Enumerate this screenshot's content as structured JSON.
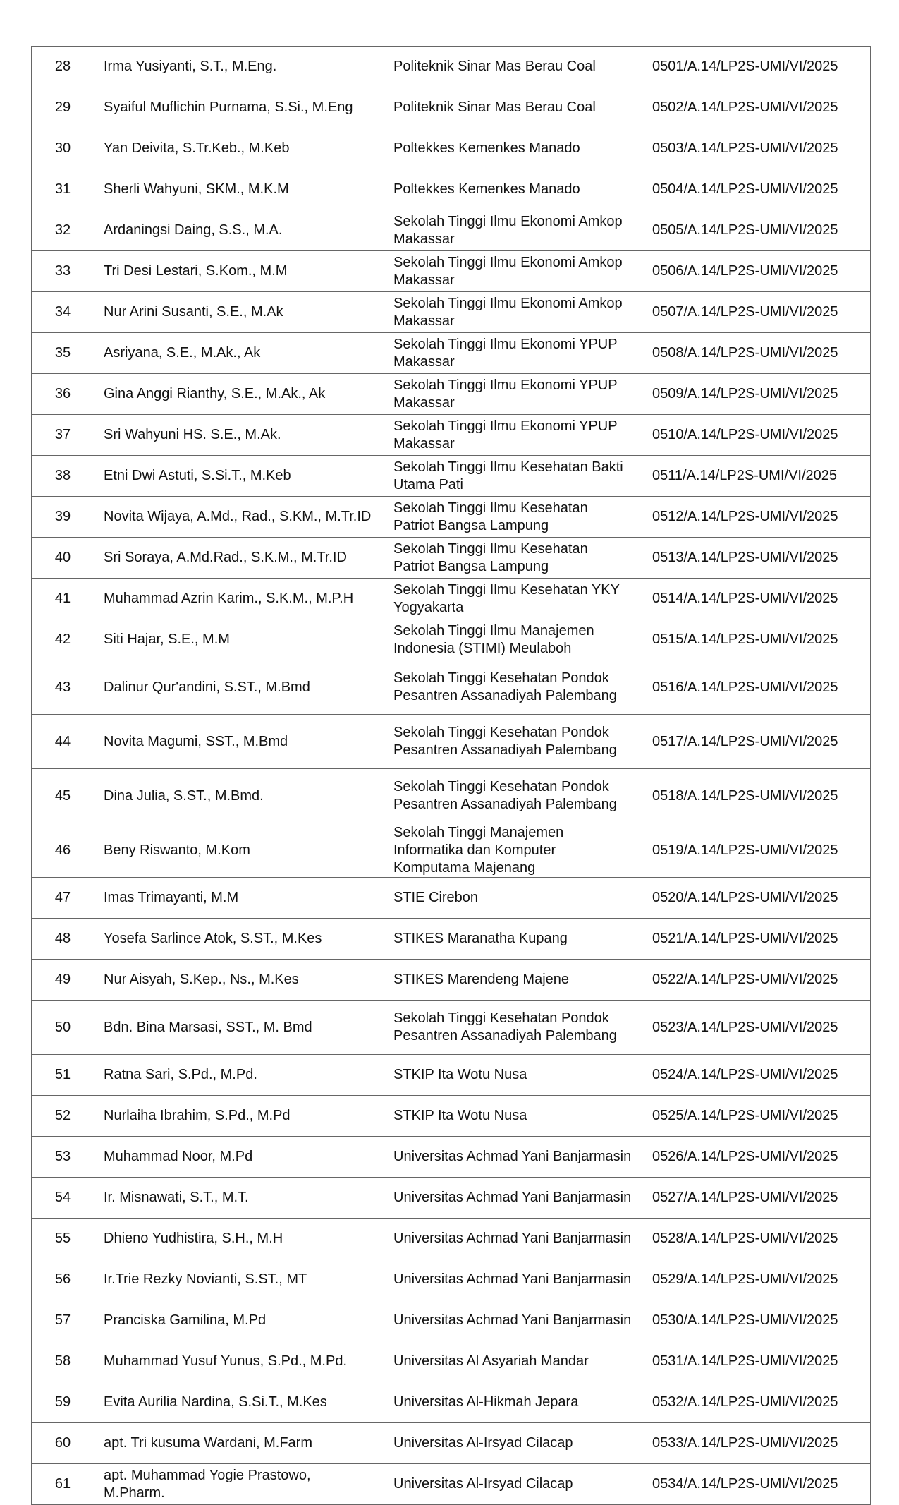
{
  "table": {
    "rows": [
      {
        "no": "28",
        "name": "Irma Yusiyanti, S.T., M.Eng.",
        "institution": "Politeknik Sinar Mas Berau Coal",
        "ref": "0501/A.14/LP2S-UMI/VI/2025"
      },
      {
        "no": "29",
        "name": "Syaiful Muflichin Purnama, S.Si., M.Eng",
        "institution": "Politeknik Sinar Mas Berau Coal",
        "ref": "0502/A.14/LP2S-UMI/VI/2025"
      },
      {
        "no": "30",
        "name": "Yan Deivita, S.Tr.Keb., M.Keb",
        "institution": "Poltekkes Kemenkes Manado",
        "ref": "0503/A.14/LP2S-UMI/VI/2025"
      },
      {
        "no": "31",
        "name": "Sherli Wahyuni, SKM., M.K.M",
        "institution": "Poltekkes Kemenkes Manado",
        "ref": "0504/A.14/LP2S-UMI/VI/2025"
      },
      {
        "no": "32",
        "name": "Ardaningsi Daing, S.S., M.A.",
        "institution": "Sekolah Tinggi Ilmu Ekonomi Amkop Makassar",
        "ref": "0505/A.14/LP2S-UMI/VI/2025"
      },
      {
        "no": "33",
        "name": "Tri Desi Lestari, S.Kom., M.M",
        "institution": "Sekolah Tinggi Ilmu Ekonomi Amkop Makassar",
        "ref": "0506/A.14/LP2S-UMI/VI/2025"
      },
      {
        "no": "34",
        "name": "Nur Arini Susanti, S.E., M.Ak",
        "institution": "Sekolah Tinggi Ilmu Ekonomi Amkop Makassar",
        "ref": "0507/A.14/LP2S-UMI/VI/2025"
      },
      {
        "no": "35",
        "name": "Asriyana, S.E., M.Ak., Ak",
        "institution": "Sekolah Tinggi Ilmu Ekonomi YPUP Makassar",
        "ref": "0508/A.14/LP2S-UMI/VI/2025"
      },
      {
        "no": "36",
        "name": "Gina Anggi Rianthy, S.E., M.Ak., Ak",
        "institution": "Sekolah Tinggi Ilmu Ekonomi YPUP Makassar",
        "ref": "0509/A.14/LP2S-UMI/VI/2025"
      },
      {
        "no": "37",
        "name": "Sri Wahyuni HS. S.E., M.Ak.",
        "institution": "Sekolah Tinggi Ilmu Ekonomi YPUP Makassar",
        "ref": "0510/A.14/LP2S-UMI/VI/2025"
      },
      {
        "no": "38",
        "name": "Etni Dwi Astuti, S.Si.T., M.Keb",
        "institution": "Sekolah Tinggi Ilmu Kesehatan Bakti Utama Pati",
        "ref": "0511/A.14/LP2S-UMI/VI/2025"
      },
      {
        "no": "39",
        "name": "Novita Wijaya, A.Md., Rad., S.KM., M.Tr.ID",
        "institution": "Sekolah Tinggi Ilmu Kesehatan Patriot Bangsa Lampung",
        "ref": "0512/A.14/LP2S-UMI/VI/2025"
      },
      {
        "no": "40",
        "name": "Sri Soraya, A.Md.Rad., S.K.M., M.Tr.ID",
        "institution": "Sekolah Tinggi Ilmu Kesehatan Patriot Bangsa Lampung",
        "ref": "0513/A.14/LP2S-UMI/VI/2025"
      },
      {
        "no": "41",
        "name": "Muhammad Azrin Karim., S.K.M., M.P.H",
        "institution": "Sekolah Tinggi Ilmu Kesehatan YKY Yogyakarta",
        "ref": "0514/A.14/LP2S-UMI/VI/2025"
      },
      {
        "no": "42",
        "name": "Siti Hajar, S.E., M.M",
        "institution": "Sekolah Tinggi Ilmu Manajemen Indonesia (STIMI) Meulaboh",
        "ref": "0515/A.14/LP2S-UMI/VI/2025"
      },
      {
        "no": "43",
        "name": "Dalinur Qur'andini, S.ST., M.Bmd",
        "institution": "Sekolah Tinggi Kesehatan Pondok Pesantren Assanadiyah Palembang",
        "ref": "0516/A.14/LP2S-UMI/VI/2025"
      },
      {
        "no": "44",
        "name": "Novita Magumi, SST., M.Bmd",
        "institution": "Sekolah Tinggi Kesehatan Pondok Pesantren Assanadiyah Palembang",
        "ref": "0517/A.14/LP2S-UMI/VI/2025"
      },
      {
        "no": "45",
        "name": "Dina Julia, S.ST., M.Bmd.",
        "institution": "Sekolah Tinggi Kesehatan Pondok Pesantren Assanadiyah Palembang",
        "ref": "0518/A.14/LP2S-UMI/VI/2025"
      },
      {
        "no": "46",
        "name": "Beny Riswanto, M.Kom",
        "institution": "Sekolah Tinggi Manajemen Informatika dan Komputer Komputama Majenang",
        "ref": "0519/A.14/LP2S-UMI/VI/2025"
      },
      {
        "no": "47",
        "name": "Imas Trimayanti, M.M",
        "institution": "STIE Cirebon",
        "ref": "0520/A.14/LP2S-UMI/VI/2025"
      },
      {
        "no": "48",
        "name": "Yosefa Sarlince Atok, S.ST., M.Kes",
        "institution": "STIKES Maranatha Kupang",
        "ref": "0521/A.14/LP2S-UMI/VI/2025"
      },
      {
        "no": "49",
        "name": "Nur Aisyah, S.Kep., Ns., M.Kes",
        "institution": "STIKES Marendeng Majene",
        "ref": "0522/A.14/LP2S-UMI/VI/2025"
      },
      {
        "no": "50",
        "name": "Bdn. Bina Marsasi, SST., M. Bmd",
        "institution": "Sekolah Tinggi Kesehatan Pondok Pesantren Assanadiyah Palembang",
        "ref": "0523/A.14/LP2S-UMI/VI/2025"
      },
      {
        "no": "51",
        "name": "Ratna Sari, S.Pd., M.Pd.",
        "institution": "STKIP Ita Wotu Nusa",
        "ref": "0524/A.14/LP2S-UMI/VI/2025"
      },
      {
        "no": "52",
        "name": "Nurlaiha Ibrahim, S.Pd., M.Pd",
        "institution": "STKIP Ita Wotu Nusa",
        "ref": "0525/A.14/LP2S-UMI/VI/2025"
      },
      {
        "no": "53",
        "name": "Muhammad Noor, M.Pd",
        "institution": "Universitas Achmad Yani Banjarmasin",
        "ref": "0526/A.14/LP2S-UMI/VI/2025"
      },
      {
        "no": "54",
        "name": "Ir. Misnawati, S.T., M.T.",
        "institution": "Universitas Achmad Yani Banjarmasin",
        "ref": "0527/A.14/LP2S-UMI/VI/2025"
      },
      {
        "no": "55",
        "name": "Dhieno Yudhistira, S.H., M.H",
        "institution": "Universitas Achmad Yani Banjarmasin",
        "ref": "0528/A.14/LP2S-UMI/VI/2025"
      },
      {
        "no": "56",
        "name": "Ir.Trie Rezky Novianti, S.ST., MT",
        "institution": "Universitas Achmad Yani Banjarmasin",
        "ref": "0529/A.14/LP2S-UMI/VI/2025"
      },
      {
        "no": "57",
        "name": "Pranciska Gamilina, M.Pd",
        "institution": "Universitas Achmad Yani Banjarmasin",
        "ref": "0530/A.14/LP2S-UMI/VI/2025"
      },
      {
        "no": "58",
        "name": "Muhammad Yusuf Yunus, S.Pd., M.Pd.",
        "institution": "Universitas Al Asyariah Mandar",
        "ref": "0531/A.14/LP2S-UMI/VI/2025"
      },
      {
        "no": "59",
        "name": "Evita Aurilia Nardina, S.Si.T., M.Kes",
        "institution": "Universitas Al-Hikmah Jepara",
        "ref": "0532/A.14/LP2S-UMI/VI/2025"
      },
      {
        "no": "60",
        "name": "apt. Tri kusuma Wardani, M.Farm",
        "institution": "Universitas Al-Irsyad Cilacap",
        "ref": "0533/A.14/LP2S-UMI/VI/2025"
      },
      {
        "no": "61",
        "name": "apt. Muhammad Yogie Prastowo, M.Pharm.",
        "institution": "Universitas Al-Irsyad Cilacap",
        "ref": "0534/A.14/LP2S-UMI/VI/2025"
      }
    ]
  }
}
